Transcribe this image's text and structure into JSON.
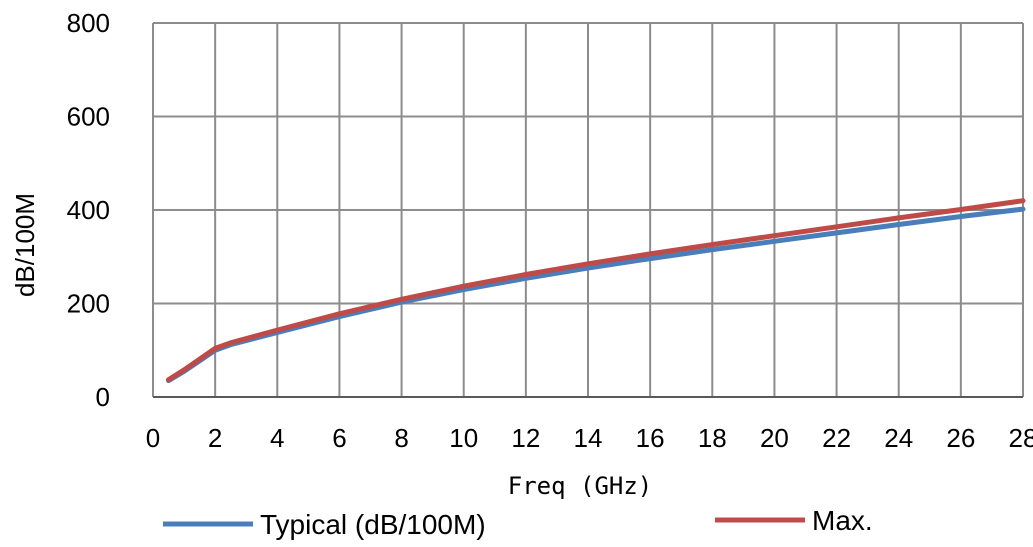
{
  "chart_data": {
    "type": "line",
    "xlabel": "Freq (GHz)",
    "ylabel": "dB/100M",
    "xlim": [
      0,
      28
    ],
    "ylim": [
      0,
      800
    ],
    "x_ticks": [
      "0",
      "2",
      "4",
      "6",
      "8",
      "10",
      "12",
      "14",
      "16",
      "18",
      "20",
      "22",
      "24",
      "26",
      "28"
    ],
    "y_ticks": [
      "0",
      "200",
      "400",
      "600",
      "800"
    ],
    "grid": true,
    "legend": "bottom",
    "x": [
      0.5,
      1,
      2,
      2.5,
      4,
      6,
      8,
      10,
      12,
      14,
      16,
      18,
      20,
      22,
      24,
      26,
      28
    ],
    "series": [
      {
        "name": "Typical (dB/100M)",
        "color": "#4a7ebb",
        "values": [
          35,
          55,
          100,
          112,
          138,
          172,
          203,
          230,
          254,
          276,
          296,
          315,
          333,
          351,
          369,
          386,
          402
        ]
      },
      {
        "name": "Max.",
        "color": "#be4b48",
        "values": [
          37,
          58,
          104,
          116,
          143,
          178,
          209,
          237,
          262,
          285,
          306,
          326,
          345,
          364,
          383,
          401,
          420
        ]
      }
    ]
  }
}
